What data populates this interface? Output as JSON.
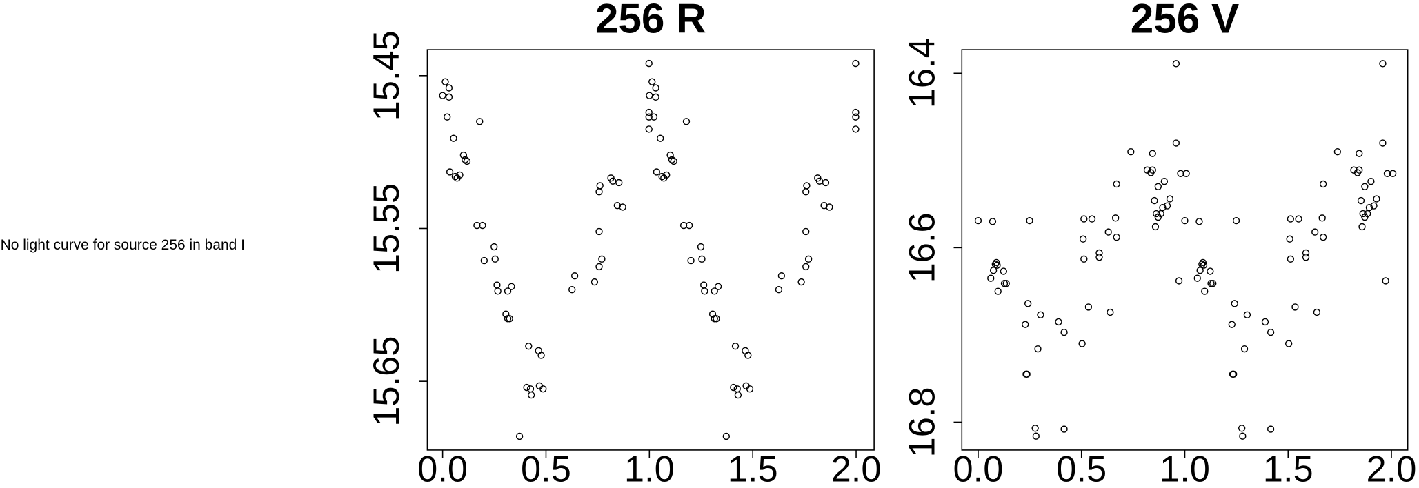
{
  "note": "No light curve for source 256 in band I",
  "chart_data": [
    {
      "type": "scatter",
      "title": "256 R",
      "color": "#000000",
      "xlim": [
        -0.074,
        2.087
      ],
      "ylim": [
        15.695,
        15.433
      ],
      "xticks": [
        {
          "value": 0,
          "label": "0.0"
        },
        0.5,
        {
          "value": 1,
          "label": "1.0"
        },
        1.5,
        {
          "value": 2,
          "label": "2.0"
        }
      ],
      "yticks": [
        15.45,
        15.55,
        15.65
      ],
      "x": [
        0.0,
        0.013,
        0.031,
        0.031,
        0.022,
        0.053,
        0.035,
        0.061,
        0.07,
        0.083,
        0.101,
        0.109,
        0.118,
        0.179,
        0.166,
        0.193,
        0.201,
        0.249,
        0.254,
        0.263,
        0.267,
        0.315,
        0.333,
        0.306,
        0.315,
        0.324,
        0.372,
        0.416,
        0.407,
        0.425,
        0.429,
        0.464,
        0.477,
        0.468,
        0.486,
        0.626,
        0.639,
        0.735,
        0.757,
        0.77,
        0.757,
        0.757,
        0.761,
        0.814,
        0.823,
        0.853,
        0.845,
        0.871,
        0.998,
        0.998,
        0.998,
        0.998,
        1.0,
        1.013,
        1.031,
        1.031,
        1.022,
        1.053,
        1.035,
        1.061,
        1.07,
        1.083,
        1.101,
        1.109,
        1.118,
        1.179,
        1.166,
        1.193,
        1.201,
        1.249,
        1.254,
        1.263,
        1.267,
        1.315,
        1.333,
        1.306,
        1.315,
        1.324,
        1.372,
        1.416,
        1.407,
        1.425,
        1.429,
        1.464,
        1.477,
        1.468,
        1.486,
        1.626,
        1.639,
        1.735,
        1.757,
        1.77,
        1.757,
        1.757,
        1.761,
        1.814,
        1.823,
        1.853,
        1.845,
        1.871,
        1.998,
        1.998,
        1.998,
        1.998
      ],
      "y": [
        15.463,
        15.454,
        15.458,
        15.464,
        15.477,
        15.491,
        15.513,
        15.516,
        15.517,
        15.515,
        15.502,
        15.505,
        15.506,
        15.48,
        15.548,
        15.548,
        15.571,
        15.562,
        15.57,
        15.587,
        15.591,
        15.591,
        15.588,
        15.606,
        15.609,
        15.609,
        15.686,
        15.627,
        15.654,
        15.655,
        15.659,
        15.63,
        15.633,
        15.653,
        15.655,
        15.59,
        15.581,
        15.585,
        15.575,
        15.57,
        15.552,
        15.526,
        15.522,
        15.517,
        15.519,
        15.52,
        15.535,
        15.536,
        15.442,
        15.474,
        15.477,
        15.485,
        15.463,
        15.454,
        15.458,
        15.464,
        15.477,
        15.491,
        15.513,
        15.516,
        15.517,
        15.515,
        15.502,
        15.505,
        15.506,
        15.48,
        15.548,
        15.548,
        15.571,
        15.562,
        15.57,
        15.587,
        15.591,
        15.591,
        15.588,
        15.606,
        15.609,
        15.609,
        15.686,
        15.627,
        15.654,
        15.655,
        15.659,
        15.63,
        15.633,
        15.653,
        15.655,
        15.59,
        15.581,
        15.585,
        15.575,
        15.57,
        15.552,
        15.526,
        15.522,
        15.517,
        15.519,
        15.52,
        15.535,
        15.536,
        15.442,
        15.474,
        15.477,
        15.485
      ]
    },
    {
      "type": "scatter",
      "title": "256 V",
      "color": "#000000",
      "xlim": [
        -0.079,
        2.079
      ],
      "ylim": [
        16.832,
        16.373
      ],
      "xticks": [
        {
          "value": 0,
          "label": "0.0"
        },
        0.5,
        {
          "value": 1,
          "label": "1.0"
        },
        1.5,
        {
          "value": 2,
          "label": "2.0"
        }
      ],
      "yticks": [
        16.4,
        16.6,
        16.8
      ],
      "x": [
        0.0,
        0.061,
        0.07,
        0.074,
        0.083,
        0.088,
        0.092,
        0.096,
        0.123,
        0.127,
        0.136,
        0.228,
        0.241,
        0.232,
        0.236,
        0.249,
        0.276,
        0.28,
        0.289,
        0.302,
        0.389,
        0.416,
        0.416,
        0.503,
        0.508,
        0.512,
        0.512,
        0.534,
        0.551,
        0.586,
        0.586,
        0.63,
        0.639,
        0.665,
        0.67,
        0.67,
        0.739,
        0.818,
        0.836,
        0.844,
        0.844,
        0.853,
        0.858,
        0.862,
        0.871,
        0.871,
        0.884,
        0.893,
        0.901,
        0.915,
        0.928,
        0.958,
        0.958,
        0.98,
        0.972,
        1.007,
        1.0,
        1.061,
        1.07,
        1.074,
        1.083,
        1.088,
        1.092,
        1.096,
        1.123,
        1.127,
        1.136,
        1.228,
        1.241,
        1.232,
        1.236,
        1.249,
        1.276,
        1.28,
        1.289,
        1.302,
        1.389,
        1.416,
        1.416,
        1.503,
        1.508,
        1.512,
        1.512,
        1.534,
        1.551,
        1.586,
        1.586,
        1.63,
        1.639,
        1.665,
        1.67,
        1.67,
        1.739,
        1.818,
        1.836,
        1.844,
        1.844,
        1.853,
        1.858,
        1.862,
        1.871,
        1.871,
        1.884,
        1.893,
        1.901,
        1.915,
        1.928,
        1.958,
        1.958,
        1.98,
        1.972,
        2.007
      ],
      "y": [
        16.569,
        16.635,
        16.57,
        16.626,
        16.619,
        16.617,
        16.62,
        16.65,
        16.627,
        16.641,
        16.641,
        16.688,
        16.664,
        16.745,
        16.745,
        16.569,
        16.807,
        16.816,
        16.716,
        16.677,
        16.685,
        16.697,
        16.808,
        16.71,
        16.59,
        16.613,
        16.567,
        16.668,
        16.567,
        16.606,
        16.611,
        16.582,
        16.674,
        16.566,
        16.527,
        16.588,
        16.49,
        16.511,
        16.514,
        16.511,
        16.492,
        16.546,
        16.576,
        16.561,
        16.565,
        16.53,
        16.561,
        16.554,
        16.524,
        16.552,
        16.544,
        16.389,
        16.48,
        16.515,
        16.638,
        16.515,
        16.569,
        16.635,
        16.57,
        16.626,
        16.619,
        16.617,
        16.62,
        16.65,
        16.627,
        16.641,
        16.641,
        16.688,
        16.664,
        16.745,
        16.745,
        16.569,
        16.807,
        16.816,
        16.716,
        16.677,
        16.685,
        16.697,
        16.808,
        16.71,
        16.59,
        16.613,
        16.567,
        16.668,
        16.567,
        16.606,
        16.611,
        16.582,
        16.674,
        16.566,
        16.527,
        16.588,
        16.49,
        16.511,
        16.514,
        16.511,
        16.492,
        16.546,
        16.576,
        16.561,
        16.565,
        16.53,
        16.561,
        16.554,
        16.524,
        16.552,
        16.544,
        16.389,
        16.48,
        16.515,
        16.638,
        16.515
      ]
    }
  ]
}
